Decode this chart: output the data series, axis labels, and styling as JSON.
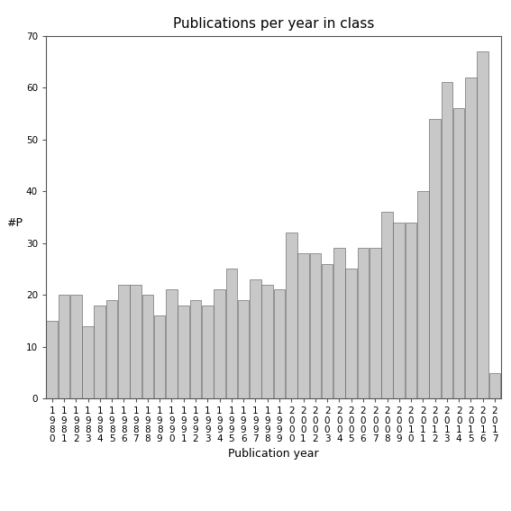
{
  "title": "Publications per year in class",
  "xlabel": "Publication year",
  "ylabel": "#P",
  "years": [
    "1980",
    "1981",
    "1982",
    "1983",
    "1984",
    "1985",
    "1986",
    "1987",
    "1988",
    "1989",
    "1990",
    "1991",
    "1992",
    "1993",
    "1994",
    "1995",
    "1996",
    "1997",
    "1998",
    "1999",
    "2000",
    "2001",
    "2002",
    "2003",
    "2004",
    "2005",
    "2006",
    "2007",
    "2008",
    "2009",
    "2010",
    "2011",
    "2012",
    "2013",
    "2014",
    "2015",
    "2016",
    "2017"
  ],
  "values": [
    15,
    20,
    20,
    14,
    18,
    19,
    22,
    22,
    20,
    16,
    21,
    18,
    19,
    18,
    21,
    25,
    19,
    23,
    22,
    21,
    32,
    28,
    28,
    26,
    29,
    25,
    29,
    29,
    36,
    34,
    34,
    40,
    54,
    61,
    56,
    62,
    67,
    5
  ],
  "bar_color": "#c8c8c8",
  "bar_edge_color": "#555555",
  "ylim": [
    0,
    70
  ],
  "yticks": [
    0,
    10,
    20,
    30,
    40,
    50,
    60,
    70
  ],
  "bg_color": "#ffffff",
  "title_fontsize": 11,
  "axis_label_fontsize": 9,
  "tick_fontsize": 7.5,
  "bar_width": 0.95
}
